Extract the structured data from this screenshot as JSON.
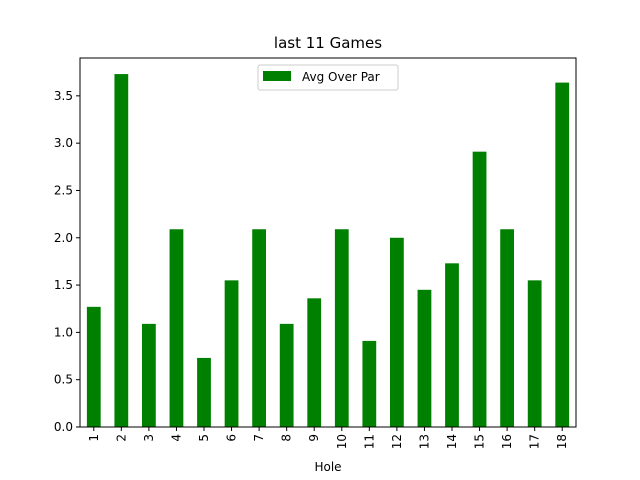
{
  "chart_data": {
    "type": "bar",
    "title": "last 11 Games",
    "xlabel": "Hole",
    "ylabel": "",
    "categories": [
      "1",
      "2",
      "3",
      "4",
      "5",
      "6",
      "7",
      "8",
      "9",
      "10",
      "11",
      "12",
      "13",
      "14",
      "15",
      "16",
      "17",
      "18"
    ],
    "series": [
      {
        "name": "Avg Over Par",
        "color": "#008000",
        "values": [
          1.27,
          3.73,
          1.09,
          2.09,
          0.73,
          1.55,
          2.09,
          1.09,
          1.36,
          2.09,
          0.91,
          2.0,
          1.45,
          1.73,
          2.91,
          2.09,
          1.55,
          3.64
        ]
      }
    ],
    "ylim": [
      0,
      3.9
    ],
    "yticks": [
      "0.0",
      "0.5",
      "1.0",
      "1.5",
      "2.0",
      "2.5",
      "3.0",
      "3.5"
    ],
    "grid": false,
    "legend_position": "upper center",
    "x_tick_rotation": "vertical"
  }
}
